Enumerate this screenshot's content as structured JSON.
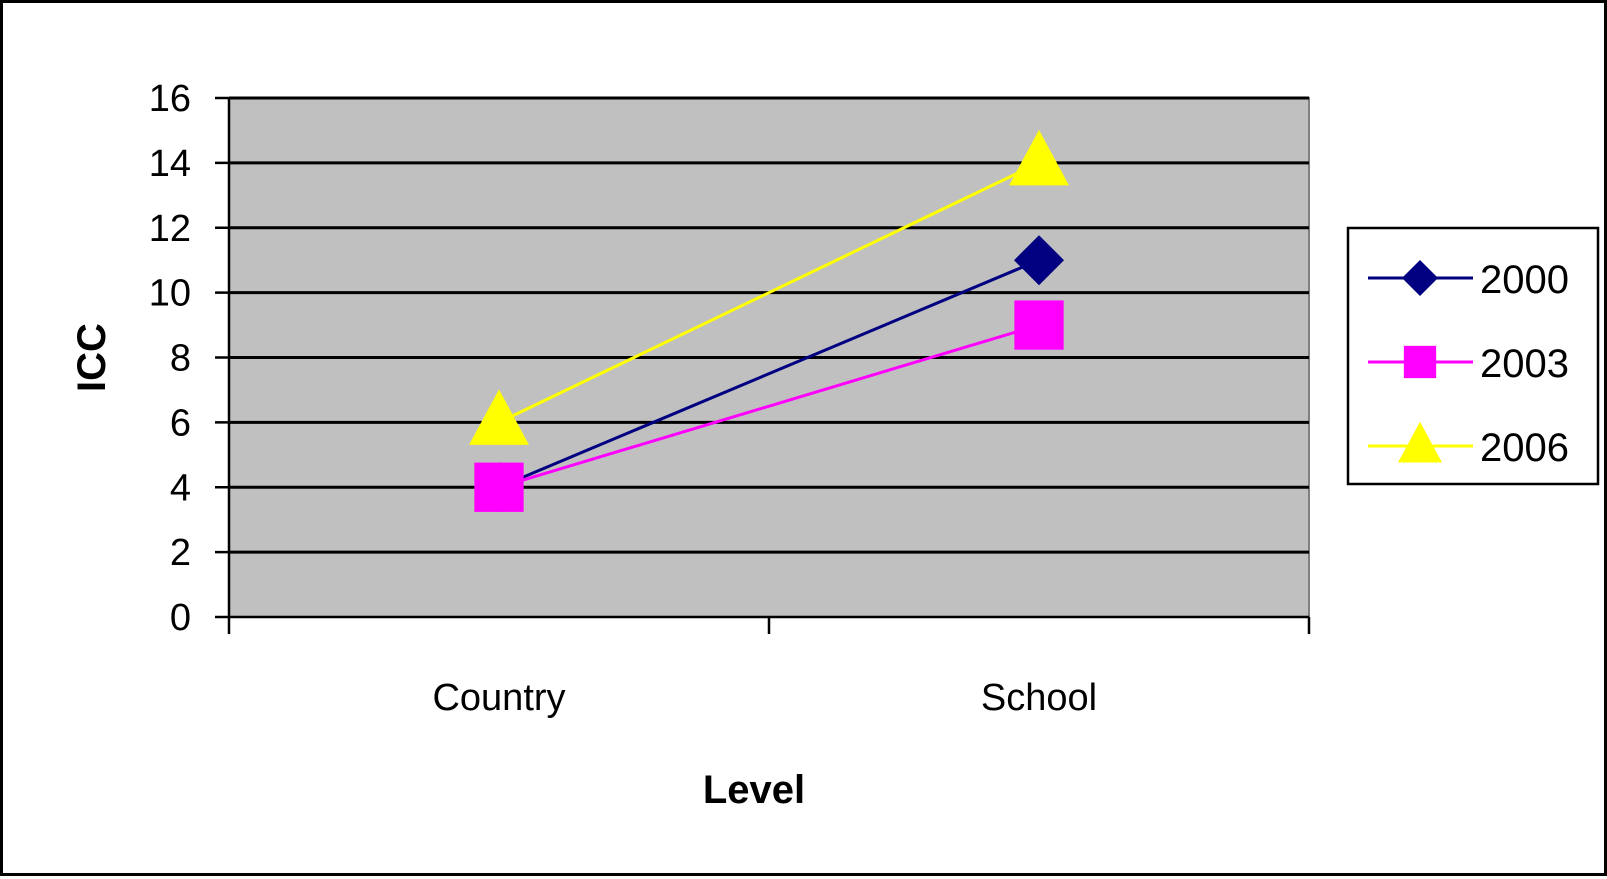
{
  "chart_data": {
    "type": "line",
    "categories": [
      "Country",
      "School"
    ],
    "series": [
      {
        "name": "2000",
        "values": [
          4,
          11
        ],
        "color": "#000080",
        "marker": "diamond"
      },
      {
        "name": "2003",
        "values": [
          4,
          9
        ],
        "color": "#FF00FF",
        "marker": "square"
      },
      {
        "name": "2006",
        "values": [
          6,
          14
        ],
        "color": "#FFFF00",
        "marker": "triangle"
      }
    ],
    "xlabel": "Level",
    "ylabel": "ICC",
    "ylim": [
      0,
      16
    ],
    "yticks": [
      "0",
      "2",
      "4",
      "6",
      "8",
      "10",
      "12",
      "14",
      "16"
    ],
    "grid": true,
    "plot_background": "#C0C0C0",
    "legend_position": "right"
  }
}
